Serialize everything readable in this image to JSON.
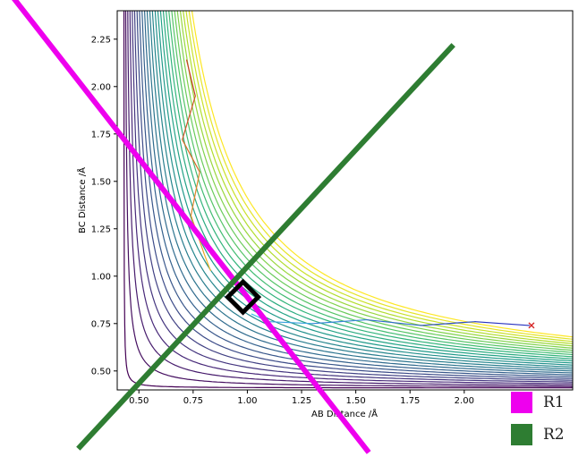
{
  "chart_data": {
    "type": "contour",
    "xlabel": "AB Distance /Å",
    "ylabel": "BC Distance /Å",
    "xlim": [
      0.4,
      2.5
    ],
    "ylim": [
      0.4,
      2.4
    ],
    "xticks": [
      "0.50",
      "0.75",
      "1.00",
      "1.25",
      "1.50",
      "1.75",
      "2.00"
    ],
    "yticks": [
      "0.50",
      "0.75",
      "1.00",
      "1.25",
      "1.50",
      "1.75",
      "2.00",
      "2.25"
    ],
    "contour_levels": 27,
    "colormap": "viridis",
    "trajectory_ab": {
      "x": [
        0.72,
        0.76,
        0.7,
        0.78,
        0.74,
        0.8,
        0.83
      ],
      "y": [
        2.14,
        1.95,
        1.72,
        1.55,
        1.32,
        1.12,
        1.03
      ]
    },
    "trajectory_bc": {
      "x": [
        1.02,
        1.1,
        1.3,
        1.55,
        1.8,
        2.05,
        2.3
      ],
      "y": [
        0.8,
        0.76,
        0.75,
        0.77,
        0.74,
        0.76,
        0.74
      ]
    },
    "end_marker": {
      "x": 2.31,
      "y": 0.74,
      "symbol": "x",
      "color": "#d62728"
    },
    "transition_state": {
      "x": 0.98,
      "y": 0.89,
      "shape": "diamond",
      "color": "#000000"
    },
    "overlay_lines": [
      {
        "name": "R1",
        "color": "#ee00ee",
        "x": [
          -0.08,
          1.56
        ],
        "y": [
          2.47,
          0.07
        ]
      },
      {
        "name": "R2",
        "color": "#2e7d32",
        "x": [
          0.22,
          1.95
        ],
        "y": [
          0.09,
          2.22
        ]
      }
    ],
    "legend": [
      {
        "label": "R1",
        "color": "#ee00ee"
      },
      {
        "label": "R2",
        "color": "#2e7d32"
      }
    ],
    "legend_position": "bottom-right"
  }
}
